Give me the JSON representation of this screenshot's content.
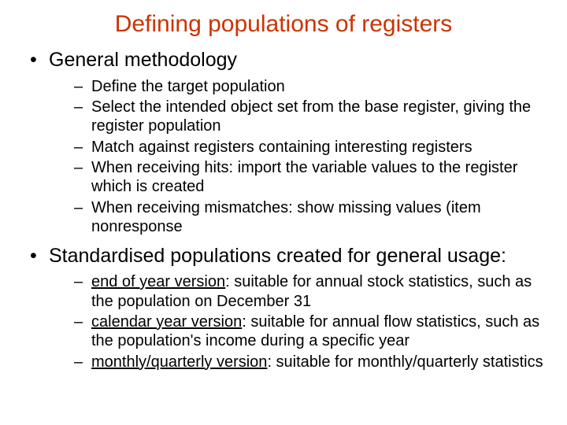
{
  "colors": {
    "title_color": "#cc3300",
    "body_color": "#000000",
    "background": "#ffffff"
  },
  "title": "Defining populations of registers",
  "sections": [
    {
      "heading": "General methodology",
      "items": [
        {
          "text": "Define the target population"
        },
        {
          "text": "Select the intended object set from the base register, giving the register population"
        },
        {
          "text": "Match against registers containing interesting registers"
        },
        {
          "text": "When receiving hits: import the variable values to the register which is created"
        },
        {
          "text": "When receiving mismatches: show missing values (item nonresponse"
        }
      ]
    },
    {
      "heading": "Standardised populations created for general usage:",
      "items": [
        {
          "lead": "end of year version",
          "rest": ": suitable for annual stock statistics, such as the population on December 31"
        },
        {
          "lead": "calendar year version",
          "rest": ": suitable for annual flow statistics, such as the population's income during a specific year"
        },
        {
          "lead": "monthly/quarterly version",
          "rest": ": suitable for monthly/quarterly statistics"
        }
      ]
    }
  ]
}
